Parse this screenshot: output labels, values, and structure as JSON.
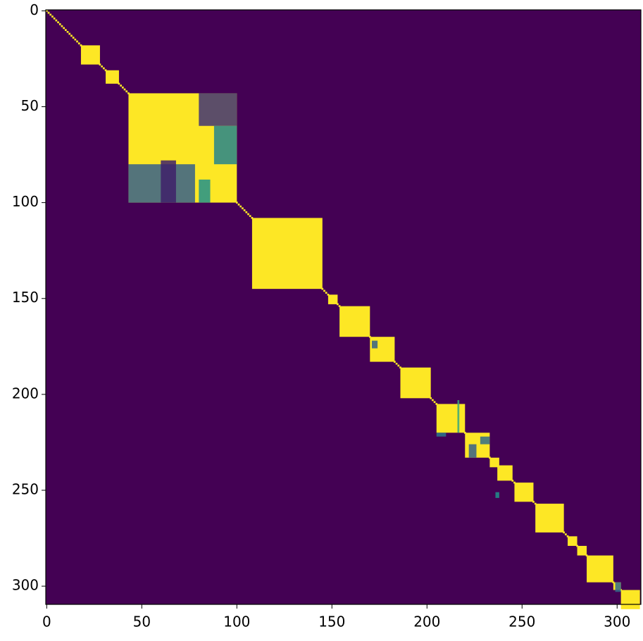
{
  "chart_data": {
    "type": "heatmap",
    "colormap": "viridis",
    "value_range": [
      0,
      1
    ],
    "fill_value": 0,
    "diagonal_value": 1,
    "xlim": [
      -0.5,
      312.5
    ],
    "ylim": [
      309.5,
      -0.5
    ],
    "xticks": [
      0,
      50,
      100,
      150,
      200,
      250,
      300
    ],
    "yticks": [
      0,
      50,
      100,
      150,
      200,
      250,
      300
    ],
    "blocks": [
      [
        18,
        28,
        1
      ],
      [
        31,
        38,
        1
      ],
      [
        43,
        100,
        1
      ],
      [
        108,
        145,
        1
      ],
      [
        148,
        153,
        1
      ],
      [
        154,
        170,
        1
      ],
      [
        170,
        183,
        1
      ],
      [
        186,
        202,
        1
      ],
      [
        205,
        220,
        1
      ],
      [
        220,
        233,
        1
      ],
      [
        233,
        238,
        1
      ],
      [
        237,
        245,
        1
      ],
      [
        246,
        256,
        1
      ],
      [
        257,
        272,
        1
      ],
      [
        274,
        279,
        1
      ],
      [
        279,
        284,
        1
      ],
      [
        284,
        298,
        1
      ],
      [
        298,
        302,
        1
      ],
      [
        302,
        312,
        1
      ]
    ],
    "patches": [
      [
        80,
        100,
        43,
        60,
        0.15
      ],
      [
        88,
        100,
        60,
        80,
        0.45
      ],
      [
        43,
        78,
        80,
        100,
        0.3
      ],
      [
        60,
        68,
        78,
        100,
        0.1
      ],
      [
        80,
        86,
        88,
        100,
        0.5
      ],
      [
        171,
        174,
        172,
        176,
        0.3
      ],
      [
        205,
        210,
        220,
        222,
        0.4
      ],
      [
        222,
        226,
        226,
        233,
        0.3
      ],
      [
        228,
        233,
        222,
        226,
        0.35
      ],
      [
        216,
        217,
        203,
        220,
        0.6
      ],
      [
        236,
        238,
        251,
        254,
        0.5
      ],
      [
        299,
        302,
        298,
        303,
        0.35
      ]
    ]
  }
}
